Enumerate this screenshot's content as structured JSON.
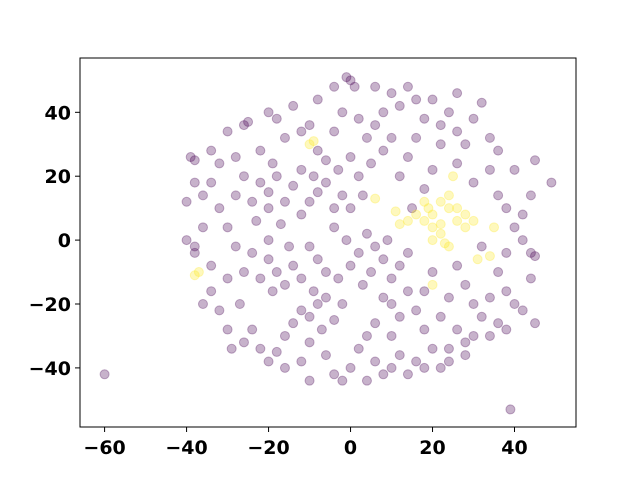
{
  "chart_data": {
    "type": "scatter",
    "title": "",
    "xlabel": "",
    "ylabel": "",
    "xlim": [
      -66,
      55
    ],
    "ylim": [
      -58.5,
      57
    ],
    "xticks": [
      -60,
      -40,
      -20,
      0,
      20,
      40
    ],
    "yticks": [
      -40,
      -20,
      0,
      20,
      40
    ],
    "xtick_labels": [
      "−60",
      "−40",
      "−20",
      "0",
      "20",
      "40"
    ],
    "ytick_labels": [
      "−40",
      "−20",
      "0",
      "20",
      "40"
    ],
    "grid": false,
    "legend": "none",
    "marker_alpha": 0.3,
    "colors": {
      "class_0": "#440154",
      "class_1": "#fde725"
    },
    "series": [
      {
        "color": "#440154",
        "points": [
          [
            -60,
            -42
          ],
          [
            39,
            -53
          ],
          [
            -40,
            0
          ],
          [
            49,
            18
          ],
          [
            45,
            25
          ],
          [
            32,
            43
          ],
          [
            0,
            50
          ],
          [
            -1,
            51
          ],
          [
            1,
            48
          ],
          [
            -25,
            37
          ],
          [
            -26,
            36
          ],
          [
            -39,
            26
          ],
          [
            -38,
            25
          ],
          [
            -38,
            -4
          ],
          [
            45,
            -5
          ],
          [
            44,
            -4
          ],
          [
            45,
            -26
          ],
          [
            -29,
            -34
          ],
          [
            -20,
            15
          ],
          [
            -22,
            18
          ],
          [
            -18,
            20
          ],
          [
            -16,
            12
          ],
          [
            -24,
            12
          ],
          [
            -20,
            10
          ],
          [
            -14,
            17
          ],
          [
            -26,
            20
          ],
          [
            -19,
            24
          ],
          [
            -23,
            6
          ],
          [
            -17,
            5
          ],
          [
            -28,
            14
          ],
          [
            -12,
            22
          ],
          [
            -8,
            15
          ],
          [
            -6,
            18
          ],
          [
            -10,
            12
          ],
          [
            -4,
            10
          ],
          [
            -9,
            20
          ],
          [
            -3,
            22
          ],
          [
            -12,
            8
          ],
          [
            -6,
            25
          ],
          [
            -2,
            14
          ],
          [
            -8,
            28
          ],
          [
            0,
            26
          ],
          [
            2,
            20
          ],
          [
            0,
            10
          ],
          [
            3,
            14
          ],
          [
            5,
            24
          ],
          [
            -4,
            4
          ],
          [
            -18,
            -10
          ],
          [
            -20,
            -6
          ],
          [
            -16,
            -14
          ],
          [
            -22,
            -12
          ],
          [
            -14,
            -8
          ],
          [
            -24,
            -4
          ],
          [
            -19,
            -16
          ],
          [
            -12,
            -12
          ],
          [
            -26,
            -10
          ],
          [
            -20,
            0
          ],
          [
            -15,
            -2
          ],
          [
            -28,
            -2
          ],
          [
            -30,
            4
          ],
          [
            -32,
            10
          ],
          [
            -30,
            -12
          ],
          [
            -27,
            -20
          ],
          [
            -8,
            -20
          ],
          [
            -10,
            -24
          ],
          [
            -6,
            -18
          ],
          [
            -12,
            -22
          ],
          [
            -4,
            -25
          ],
          [
            -9,
            -16
          ],
          [
            -7,
            -28
          ],
          [
            -14,
            -26
          ],
          [
            -2,
            -20
          ],
          [
            -16,
            -30
          ],
          [
            -10,
            -32
          ],
          [
            -18,
            -35
          ],
          [
            -12,
            -38
          ],
          [
            -6,
            -36
          ],
          [
            -20,
            -38
          ],
          [
            -24,
            -28
          ],
          [
            5,
            -10
          ],
          [
            8,
            -6
          ],
          [
            3,
            -14
          ],
          [
            10,
            -12
          ],
          [
            6,
            -2
          ],
          [
            12,
            -8
          ],
          [
            0,
            -8
          ],
          [
            2,
            -4
          ],
          [
            -3,
            -12
          ],
          [
            14,
            -4
          ],
          [
            9,
            0
          ],
          [
            4,
            2
          ],
          [
            -1,
            0
          ],
          [
            -8,
            -6
          ],
          [
            -10,
            -2
          ],
          [
            -6,
            -10
          ],
          [
            10,
            -20
          ],
          [
            12,
            -24
          ],
          [
            8,
            -18
          ],
          [
            14,
            -16
          ],
          [
            6,
            -26
          ],
          [
            16,
            -22
          ],
          [
            4,
            -30
          ],
          [
            10,
            -30
          ],
          [
            18,
            -28
          ],
          [
            2,
            -34
          ],
          [
            12,
            -36
          ],
          [
            6,
            -38
          ],
          [
            0,
            -40
          ],
          [
            16,
            -38
          ],
          [
            20,
            -34
          ],
          [
            -2,
            -44
          ],
          [
            8,
            -42
          ],
          [
            22,
            -40
          ],
          [
            20,
            -10
          ],
          [
            24,
            -18
          ],
          [
            26,
            -8
          ],
          [
            22,
            -24
          ],
          [
            28,
            -14
          ],
          [
            18,
            -16
          ],
          [
            30,
            -20
          ],
          [
            26,
            -28
          ],
          [
            32,
            -24
          ],
          [
            28,
            -32
          ],
          [
            34,
            -18
          ],
          [
            36,
            -10
          ],
          [
            38,
            -16
          ],
          [
            40,
            -20
          ],
          [
            24,
            -34
          ],
          [
            15,
            10
          ],
          [
            18,
            16
          ],
          [
            12,
            20
          ],
          [
            20,
            22
          ],
          [
            8,
            28
          ],
          [
            14,
            26
          ],
          [
            22,
            30
          ],
          [
            10,
            32
          ],
          [
            4,
            32
          ],
          [
            16,
            32
          ],
          [
            26,
            24
          ],
          [
            30,
            18
          ],
          [
            34,
            22
          ],
          [
            36,
            14
          ],
          [
            38,
            10
          ],
          [
            40,
            4
          ],
          [
            42,
            0
          ],
          [
            32,
            -2
          ],
          [
            38,
            -4
          ],
          [
            36,
            -26
          ],
          [
            30,
            -30
          ],
          [
            -34,
            18
          ],
          [
            -36,
            14
          ],
          [
            -32,
            24
          ],
          [
            -28,
            26
          ],
          [
            -22,
            28
          ],
          [
            -16,
            32
          ],
          [
            -12,
            34
          ],
          [
            -18,
            38
          ],
          [
            -10,
            36
          ],
          [
            -4,
            34
          ],
          [
            -2,
            40
          ],
          [
            2,
            38
          ],
          [
            6,
            36
          ],
          [
            8,
            40
          ],
          [
            12,
            42
          ],
          [
            16,
            44
          ],
          [
            18,
            38
          ],
          [
            22,
            36
          ],
          [
            26,
            34
          ],
          [
            28,
            30
          ],
          [
            34,
            32
          ],
          [
            30,
            38
          ],
          [
            24,
            40
          ],
          [
            -36,
            4
          ],
          [
            -34,
            -8
          ],
          [
            -34,
            -16
          ],
          [
            -32,
            -22
          ],
          [
            -30,
            -28
          ],
          [
            -36,
            -20
          ],
          [
            -38,
            -2
          ],
          [
            -40,
            12
          ],
          [
            -38,
            18
          ],
          [
            -34,
            28
          ],
          [
            -30,
            34
          ],
          [
            -20,
            40
          ],
          [
            -14,
            42
          ],
          [
            -8,
            44
          ],
          [
            -4,
            48
          ],
          [
            6,
            48
          ],
          [
            10,
            46
          ],
          [
            14,
            48
          ],
          [
            20,
            44
          ],
          [
            26,
            46
          ],
          [
            -26,
            -32
          ],
          [
            -22,
            -34
          ],
          [
            -16,
            -40
          ],
          [
            -10,
            -44
          ],
          [
            -4,
            -42
          ],
          [
            4,
            -44
          ],
          [
            10,
            -40
          ],
          [
            14,
            -42
          ],
          [
            18,
            -40
          ],
          [
            24,
            -38
          ],
          [
            28,
            -36
          ],
          [
            34,
            -30
          ],
          [
            38,
            -28
          ],
          [
            42,
            -22
          ],
          [
            44,
            -12
          ],
          [
            42,
            8
          ],
          [
            44,
            14
          ],
          [
            40,
            22
          ],
          [
            36,
            28
          ]
        ]
      },
      {
        "color": "#fde725",
        "points": [
          [
            22,
            5
          ],
          [
            20,
            8
          ],
          [
            24,
            10
          ],
          [
            18,
            6
          ],
          [
            26,
            6
          ],
          [
            22,
            2
          ],
          [
            20,
            0
          ],
          [
            24,
            -2
          ],
          [
            28,
            4
          ],
          [
            16,
            8
          ],
          [
            18,
            12
          ],
          [
            24,
            14
          ],
          [
            26,
            10
          ],
          [
            28,
            8
          ],
          [
            22,
            12
          ],
          [
            20,
            4
          ],
          [
            14,
            6
          ],
          [
            30,
            6
          ],
          [
            23,
            -1
          ],
          [
            19,
            10
          ],
          [
            -38,
            -11
          ],
          [
            -37,
            -10
          ],
          [
            34,
            -5
          ],
          [
            31,
            -6
          ],
          [
            35,
            4
          ],
          [
            -10,
            30
          ],
          [
            -9,
            31
          ],
          [
            25,
            20
          ],
          [
            11,
            9
          ],
          [
            20,
            -14
          ],
          [
            6,
            13
          ],
          [
            12,
            5
          ]
        ]
      }
    ]
  }
}
